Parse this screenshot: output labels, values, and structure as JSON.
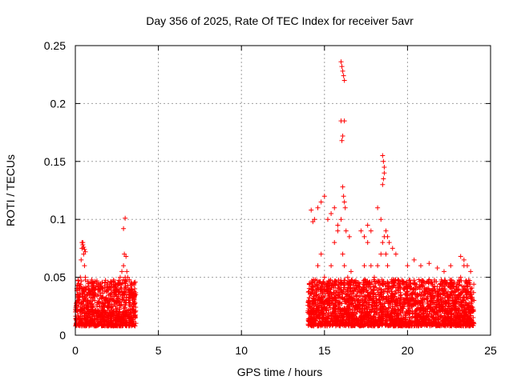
{
  "chart_data": {
    "type": "scatter",
    "title": "Day 356 of 2025, Rate Of TEC Index for receiver 5avr",
    "xlabel": "GPS time / hours",
    "ylabel": "ROTI / TECUs",
    "xlim": [
      0,
      25
    ],
    "ylim": [
      0,
      0.25
    ],
    "x_ticks": [
      "0",
      "5",
      "10",
      "15",
      "20",
      "25"
    ],
    "y_ticks": [
      "0",
      "0.05",
      "0.1",
      "0.15",
      "0.2",
      "0.25"
    ],
    "grid": true,
    "marker": "plus",
    "series_color": "#ff0000",
    "series": [
      {
        "x": [
          0.05,
          0.15,
          0.25,
          0.3,
          0.35,
          0.4,
          0.45,
          0.5,
          0.55,
          0.6,
          0.65,
          0.7,
          0.75,
          0.8,
          0.9,
          1.0,
          1.1,
          1.2,
          1.3,
          1.4,
          1.5,
          1.6,
          1.7,
          1.8,
          1.9,
          2.0,
          2.1,
          2.2,
          2.3,
          2.4,
          2.5,
          2.6,
          2.7,
          2.8,
          2.9,
          3.0,
          3.05,
          3.1,
          3.2,
          3.3,
          3.4,
          3.5,
          3.6,
          2.9,
          2.95,
          3.0,
          3.05,
          3.1,
          3.15,
          0.4,
          0.45,
          0.5,
          0.55,
          0.6,
          14.2,
          14.4,
          14.6,
          14.8,
          15.0,
          15.2,
          15.4,
          15.6,
          15.8,
          16.0,
          16.1,
          16.2,
          16.4,
          16.6,
          16.8,
          17.0,
          17.2,
          17.4,
          17.6,
          17.8,
          18.0,
          18.2,
          18.4,
          18.5,
          18.6,
          18.7,
          18.8,
          19.0,
          19.2,
          19.4,
          19.6,
          19.8,
          20.0,
          20.2,
          20.4,
          20.6,
          20.8,
          21.0,
          21.2,
          21.4,
          21.6,
          21.8,
          22.0,
          22.2,
          22.4,
          22.6,
          22.8,
          23.0,
          23.2,
          23.4,
          23.6,
          23.8,
          24.0,
          14.1,
          14.3,
          14.5,
          14.7,
          14.9,
          15.1,
          15.3,
          15.5,
          15.7,
          15.9,
          16.3,
          16.5,
          16.7,
          16.9,
          17.1,
          17.3,
          17.5,
          17.7,
          17.9,
          18.1,
          18.3,
          18.9,
          19.1,
          19.3,
          19.5,
          19.7,
          19.9,
          20.1,
          20.3,
          20.5,
          20.7,
          20.9,
          21.1,
          21.3,
          21.5,
          21.7,
          21.9,
          22.1,
          22.3,
          22.5,
          22.7,
          22.9,
          23.1,
          23.3,
          23.5,
          23.7,
          23.9,
          16.0,
          16.05,
          16.1,
          16.15,
          16.2,
          16.0,
          16.1,
          16.05,
          16.1,
          16.15,
          16.2,
          16.25,
          16.2,
          18.5,
          18.55,
          18.6,
          18.55,
          18.5,
          18.6,
          14.2,
          14.3,
          14.4,
          14.6,
          14.8,
          15.0,
          15.2,
          15.4,
          15.6,
          15.8,
          16.3,
          16.5,
          17.2,
          17.4,
          17.6,
          17.8,
          18.2,
          18.4,
          18.7,
          18.8,
          18.9,
          19.1,
          19.3,
          20.0,
          20.4,
          20.8,
          21.3,
          21.8,
          22.2,
          22.6,
          23.2,
          23.4,
          23.6,
          23.8
        ],
        "y": [
          0.025,
          0.03,
          0.04,
          0.05,
          0.065,
          0.075,
          0.08,
          0.07,
          0.06,
          0.05,
          0.04,
          0.035,
          0.03,
          0.025,
          0.02,
          0.02,
          0.018,
          0.022,
          0.025,
          0.02,
          0.018,
          0.02,
          0.022,
          0.028,
          0.03,
          0.025,
          0.02,
          0.022,
          0.03,
          0.035,
          0.04,
          0.045,
          0.05,
          0.055,
          0.06,
          0.05,
          0.04,
          0.035,
          0.03,
          0.028,
          0.025,
          0.022,
          0.02,
          0.092,
          0.07,
          0.101,
          0.068,
          0.055,
          0.05,
          0.08,
          0.078,
          0.076,
          0.074,
          0.072,
          0.04,
          0.045,
          0.06,
          0.07,
          0.05,
          0.045,
          0.06,
          0.08,
          0.09,
          0.1,
          0.07,
          0.06,
          0.05,
          0.055,
          0.04,
          0.045,
          0.04,
          0.06,
          0.08,
          0.06,
          0.05,
          0.06,
          0.07,
          0.08,
          0.085,
          0.07,
          0.06,
          0.04,
          0.045,
          0.04,
          0.035,
          0.04,
          0.035,
          0.045,
          0.04,
          0.035,
          0.03,
          0.045,
          0.04,
          0.035,
          0.04,
          0.03,
          0.035,
          0.04,
          0.03,
          0.045,
          0.035,
          0.04,
          0.05,
          0.06,
          0.045,
          0.04,
          0.03,
          0.025,
          0.03,
          0.035,
          0.03,
          0.028,
          0.03,
          0.032,
          0.03,
          0.028,
          0.035,
          0.03,
          0.028,
          0.03,
          0.025,
          0.028,
          0.03,
          0.025,
          0.03,
          0.028,
          0.03,
          0.028,
          0.03,
          0.025,
          0.028,
          0.03,
          0.025,
          0.028,
          0.022,
          0.025,
          0.028,
          0.022,
          0.025,
          0.022,
          0.025,
          0.022,
          0.025,
          0.022,
          0.025,
          0.022,
          0.025,
          0.022,
          0.025,
          0.022,
          0.025,
          0.022,
          0.025,
          0.022,
          0.236,
          0.232,
          0.228,
          0.224,
          0.22,
          0.185,
          0.172,
          0.168,
          0.128,
          0.12,
          0.115,
          0.11,
          0.185,
          0.155,
          0.15,
          0.145,
          0.135,
          0.13,
          0.14,
          0.108,
          0.098,
          0.1,
          0.11,
          0.115,
          0.12,
          0.1,
          0.105,
          0.11,
          0.095,
          0.09,
          0.085,
          0.09,
          0.085,
          0.095,
          0.09,
          0.11,
          0.1,
          0.09,
          0.085,
          0.08,
          0.075,
          0.07,
          0.06,
          0.065,
          0.06,
          0.062,
          0.058,
          0.055,
          0.06,
          0.068,
          0.065,
          0.06,
          0.055
        ]
      }
    ]
  }
}
